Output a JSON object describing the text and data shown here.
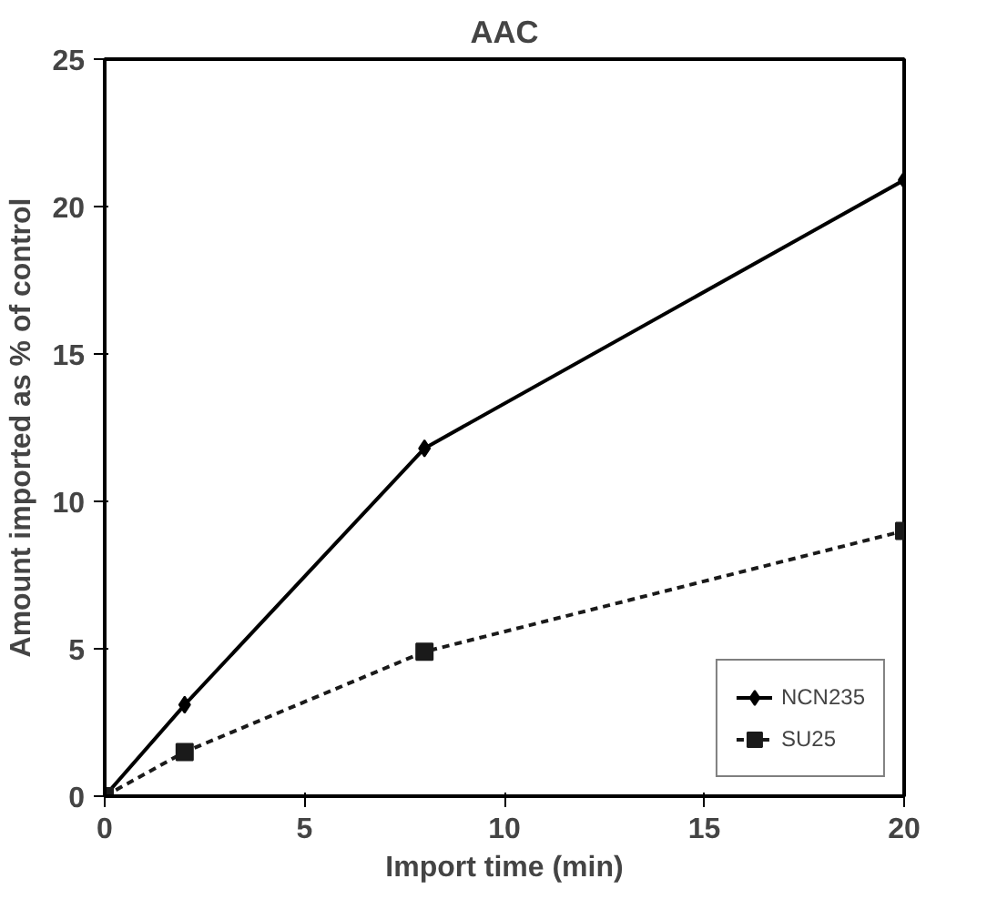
{
  "chart_data": {
    "type": "line",
    "title": "AAC",
    "xlabel": "Import time (min)",
    "ylabel": "Amount imported as % of control",
    "x": [
      0,
      2,
      8,
      20
    ],
    "series": [
      {
        "name": "NCN235",
        "color": "#000000",
        "values": [
          0,
          3.1,
          11.8,
          20.9
        ],
        "marker": "diamond",
        "line_style": "solid"
      },
      {
        "name": "SU25",
        "color": "#1a1a1a",
        "values": [
          0,
          1.5,
          4.9,
          9.0
        ],
        "marker": "square",
        "line_style": "dashed"
      }
    ],
    "xlim": [
      0,
      20
    ],
    "xticks": [
      0,
      5,
      10,
      15,
      20
    ],
    "ylim": [
      0,
      25
    ],
    "yticks": [
      0,
      5,
      10,
      15,
      20,
      25
    ],
    "grid": false,
    "legend": "bottom right"
  }
}
